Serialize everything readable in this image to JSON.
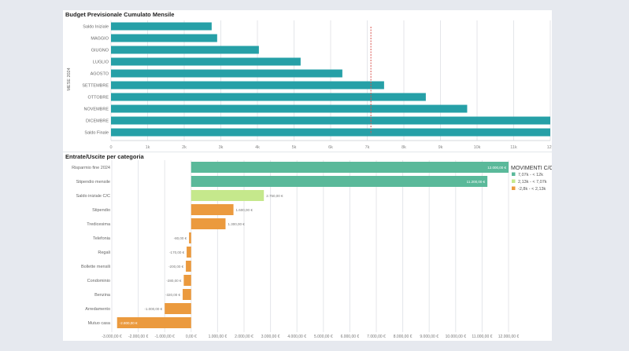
{
  "chart_data": [
    {
      "type": "bar",
      "orientation": "horizontal",
      "title": "Budget Previsionale Cumulato Mensile",
      "ylabel": "MESE 2024",
      "xlabel": "",
      "categories": [
        "Saldo Iniziale",
        "MAGGIO",
        "GIUGNO",
        "LUGLIO",
        "AGOSTO",
        "SETTEMBRE",
        "OTTOBRE",
        "NOVEMBRE",
        "DICEMBRE",
        "Saldo Finale"
      ],
      "values": [
        2750,
        2900,
        4040,
        5180,
        6320,
        7460,
        8600,
        9730,
        12500,
        12500
      ],
      "xlim": [
        0,
        12000
      ],
      "xticks": [
        "0",
        "1k",
        "2k",
        "3k",
        "4k",
        "5k",
        "6k",
        "7k",
        "8k",
        "9k",
        "10k",
        "11k",
        "12k"
      ],
      "reference_line": {
        "value": 7100,
        "style": "dashed",
        "color": "#d9534f"
      },
      "bar_color": "#26a0a7",
      "grid": true
    },
    {
      "type": "bar",
      "orientation": "horizontal",
      "title": "Entrate/Uscite per categoria",
      "categories": [
        "Risparmio fine 2024",
        "Stipendio mensile",
        "Saldo iniziale C/C",
        "Stipendio",
        "Tredicesima",
        "Telefonia",
        "Regali",
        "Bollette mensili",
        "Condominio",
        "Benzina",
        "Arredamento",
        "Mutuo casa"
      ],
      "values": [
        12000,
        11200,
        2750,
        1600,
        1300,
        -80,
        -170,
        -200,
        -280,
        -320,
        -1000,
        -2800
      ],
      "labels": [
        "12.000,00 €",
        "11.200,00 €",
        "2.750,00 €",
        "1.600,00 €",
        "1.300,00 €",
        "-80,00 €",
        "-170,00 €",
        "-200,00 €",
        "-280,00 €",
        "-320,00 €",
        "-1.000,00 €",
        "-2.800,00 €"
      ],
      "groups": [
        0,
        0,
        1,
        2,
        2,
        2,
        2,
        2,
        2,
        2,
        2,
        2
      ],
      "xlim": [
        -3000,
        12000
      ],
      "xticks": [
        "-3.000,00 €",
        "-2.000,00 €",
        "-1.000,00 €",
        "0,00 €",
        "1.000,00 €",
        "2.000,00 €",
        "3.000,00 €",
        "4.000,00 €",
        "5.000,00 €",
        "6.000,00 €",
        "7.000,00 €",
        "8.000,00 €",
        "9.000,00 €",
        "10.000,00 €",
        "11.000,00 €",
        "12.000,00 €"
      ],
      "legend": {
        "title": "MOVIMENTI C/C",
        "position": "top-right",
        "entries": [
          {
            "label": "7,07k - < 12k",
            "color": "#5ab99a"
          },
          {
            "label": "2,13k - < 7,07k",
            "color": "#c5e88c"
          },
          {
            "label": "-2,8k - < 2,13k",
            "color": "#eb9a3e"
          }
        ]
      },
      "grid": true
    }
  ]
}
